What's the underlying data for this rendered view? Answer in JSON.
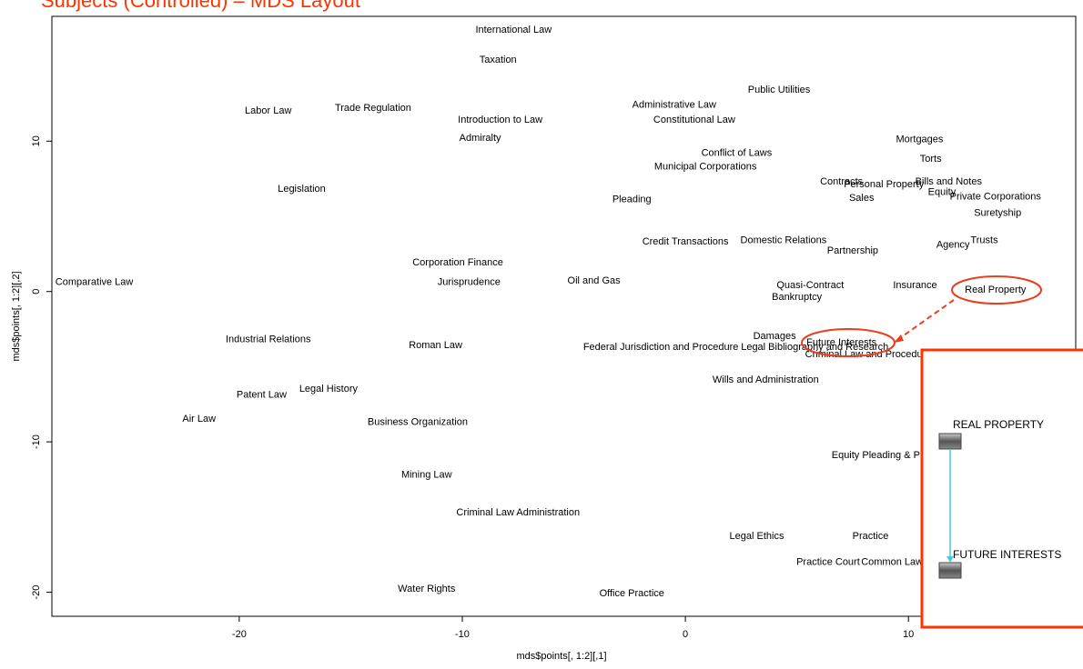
{
  "chart_data": {
    "type": "scatter",
    "title": "Subjects (Controlled) – MDS Layout",
    "xlabel": "mds$points[, 1:2][,1]",
    "ylabel": "mds$points[, 1:2][,2]",
    "xlim": [
      -28.4,
      17.5
    ],
    "ylim": [
      -21.6,
      18.3
    ],
    "xticks": [
      -20,
      -10,
      0,
      10
    ],
    "yticks": [
      -20,
      -10,
      0,
      10
    ],
    "labels": [
      "International Law",
      "Taxation",
      "Public Utilities",
      "Administrative Law",
      "Labor Law",
      "Trade Regulation",
      "Introduction to Law",
      "Constitutional Law",
      "Admiralty",
      "Mortgages",
      "Conflict of Laws",
      "Torts",
      "Municipal Corporations",
      "Contracts",
      "Personal Property",
      "Bills and Notes",
      "Equity",
      "Private Corporations",
      "Legislation",
      "Sales",
      "Pleading",
      "Suretyship",
      "Credit Transactions",
      "Domestic Relations",
      "Trusts",
      "Agency",
      "Partnership",
      "Corporation Finance",
      "Oil and Gas",
      "Comparative Law",
      "Jurisprudence",
      "Quasi-Contract",
      "Insurance",
      "Real Property",
      "Bankruptcy",
      "Damages",
      "Industrial Relations",
      "Future Interests",
      "Roman Law",
      "Federal Jurisdiction and Procedure",
      "Legal Bibliography and Research",
      "Criminal Law and Procedure",
      "Wills and Administration",
      "Legal History",
      "Patent Law",
      "Air Law",
      "Business Organization",
      "Equity Pleading & Practice",
      "Mining Law",
      "Criminal Law Administration",
      "Legal Ethics",
      "Practice",
      "Practice Court",
      "Common Law Pleading",
      "Water Rights",
      "Office Practice"
    ],
    "x": [
      -7.7,
      -8.4,
      4.2,
      -0.5,
      -18.7,
      -14.0,
      -8.3,
      0.4,
      -9.2,
      10.5,
      2.3,
      11.0,
      0.9,
      7.0,
      8.9,
      11.8,
      11.5,
      13.9,
      -17.2,
      7.9,
      -2.4,
      14.0,
      0.0,
      4.4,
      13.4,
      12.0,
      7.5,
      -10.2,
      -4.1,
      -26.5,
      -9.7,
      5.6,
      10.3,
      13.9,
      5.0,
      4.0,
      -18.7,
      7.0,
      -11.2,
      -1.1,
      5.8,
      8.2,
      3.6,
      -16.0,
      -19.0,
      -21.8,
      -12.0,
      9.2,
      -11.6,
      -7.5,
      3.2,
      8.3,
      6.4,
      10.2,
      -11.6,
      -2.4
    ],
    "y": [
      17.4,
      15.4,
      13.4,
      12.4,
      12.0,
      12.2,
      11.4,
      11.4,
      10.2,
      10.1,
      9.2,
      8.8,
      8.3,
      7.3,
      7.1,
      7.3,
      6.6,
      6.3,
      6.8,
      6.2,
      6.1,
      5.2,
      3.3,
      3.4,
      3.4,
      3.1,
      2.7,
      1.9,
      0.7,
      0.6,
      0.6,
      0.4,
      0.4,
      0.1,
      -0.4,
      -3.0,
      -3.2,
      -3.4,
      -3.6,
      -3.7,
      -3.7,
      -4.2,
      -5.9,
      -6.5,
      -6.9,
      -8.5,
      -8.7,
      -10.9,
      -12.2,
      -14.7,
      -16.3,
      -16.3,
      -18.0,
      -18.0,
      -19.8,
      -20.1
    ],
    "color": "#000000",
    "annotations": [
      "REAL PROPERTY",
      "FUTURE INTERESTS"
    ]
  }
}
